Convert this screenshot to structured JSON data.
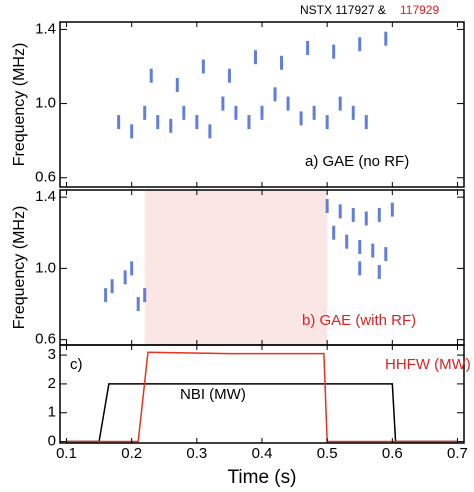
{
  "chart_data": [
    {
      "type": "spectrogram",
      "title": "NSTX 117927 &",
      "title_highlight": "117929",
      "title_highlight_color": "#e02020",
      "ylabel": "Frequency (MHz)",
      "xlim": [
        0.09,
        0.71
      ],
      "ylim": [
        0.55,
        1.44
      ],
      "yticks": [
        0.6,
        {
          "value": 1.0,
          "label": "1.0"
        },
        1.4
      ],
      "annotations": [
        {
          "text": "a) GAE (no RF)",
          "color": "#000000"
        }
      ],
      "color": "#3a5fcf",
      "points": {
        "x": [
          0.18,
          0.2,
          0.22,
          0.24,
          0.26,
          0.28,
          0.3,
          0.32,
          0.34,
          0.36,
          0.38,
          0.4,
          0.42,
          0.44,
          0.46,
          0.48,
          0.5,
          0.52,
          0.54,
          0.56,
          0.23,
          0.27,
          0.31,
          0.35,
          0.39,
          0.43,
          0.47,
          0.51,
          0.55,
          0.59
        ],
        "y": [
          0.9,
          0.85,
          0.95,
          0.9,
          0.88,
          0.95,
          0.9,
          0.85,
          1.0,
          0.95,
          0.9,
          0.95,
          1.05,
          1.0,
          0.92,
          0.95,
          0.9,
          1.0,
          0.95,
          0.9,
          1.15,
          1.1,
          1.2,
          1.15,
          1.25,
          1.22,
          1.3,
          1.28,
          1.32,
          1.35
        ]
      }
    },
    {
      "type": "spectrogram",
      "ylabel": "Frequency (MHz)",
      "xlim": [
        0.09,
        0.71
      ],
      "ylim": [
        0.57,
        1.44
      ],
      "yticks": [
        0.6,
        {
          "value": 1.0,
          "label": "1.0"
        },
        1.4
      ],
      "annotations": [
        {
          "text": "b) GAE (with RF)",
          "color": "#e02020"
        }
      ],
      "shaded_region": [
        0.22,
        0.5
      ],
      "shaded_color": "#fbe6e6",
      "color": "#3a5fcf",
      "points": {
        "x": [
          0.16,
          0.17,
          0.19,
          0.2,
          0.21,
          0.22,
          0.5,
          0.52,
          0.54,
          0.56,
          0.58,
          0.6,
          0.51,
          0.53,
          0.55,
          0.57,
          0.59,
          0.55,
          0.58
        ],
        "y": [
          0.85,
          0.9,
          0.95,
          1.0,
          0.8,
          0.85,
          1.35,
          1.32,
          1.3,
          1.28,
          1.3,
          1.33,
          1.2,
          1.15,
          1.12,
          1.1,
          1.08,
          1.0,
          0.98
        ]
      }
    },
    {
      "type": "line",
      "xlabel": "Time (s)",
      "xlim": [
        0.09,
        0.71
      ],
      "ylim": [
        -0.05,
        3.35
      ],
      "xticks": [
        0.1,
        0.2,
        0.3,
        0.4,
        0.5,
        0.6,
        0.7
      ],
      "yticks": [
        0,
        1,
        2,
        3
      ],
      "annotations": [
        {
          "text": "c)",
          "color": "#000000"
        },
        {
          "text": "HHFW (MW)",
          "color": "#e02020"
        },
        {
          "text": "NBI (MW)",
          "color": "#000000"
        }
      ],
      "series": [
        {
          "name": "NBI",
          "color": "#000000",
          "x": [
            0.1,
            0.15,
            0.165,
            0.3,
            0.6,
            0.605,
            0.7
          ],
          "values": [
            0,
            0,
            2.0,
            2.0,
            2.0,
            0,
            0
          ]
        },
        {
          "name": "HHFW",
          "color": "#e8321e",
          "x": [
            0.1,
            0.21,
            0.225,
            0.35,
            0.495,
            0.5,
            0.7
          ],
          "values": [
            0,
            0,
            3.1,
            3.05,
            3.05,
            0,
            0
          ]
        }
      ]
    }
  ]
}
